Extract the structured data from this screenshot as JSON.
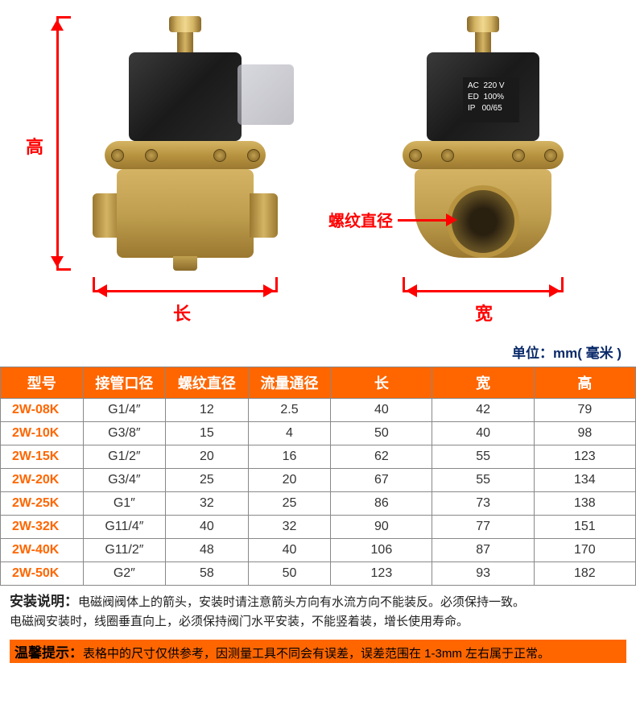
{
  "diagram": {
    "height_label": "高",
    "length_label": "长",
    "width_label": "宽",
    "thread_label": "螺纹直径",
    "sticker_line1": "AC  220 V",
    "sticker_line2": "ED  100%",
    "sticker_line3": "IP   00/65",
    "dimension_color": "#ff0000",
    "brass_light": "#d4b464",
    "brass_dark": "#8a6a2a",
    "coil_color": "#1a1a1a"
  },
  "unit_label": "单位：mm( 毫米 )",
  "table": {
    "header_bg": "#ff6600",
    "header_fg": "#ffffff",
    "border_color": "#888888",
    "model_color": "#ff6600",
    "columns": [
      "型号",
      "接管口径",
      "螺纹直径",
      "流量通径",
      "长",
      "宽",
      "高"
    ],
    "col_widths_pct": [
      13,
      13,
      13,
      13,
      16,
      16,
      16
    ],
    "rows": [
      [
        "2W-08K",
        "G1/4″",
        "12",
        "2.5",
        "40",
        "42",
        "79"
      ],
      [
        "2W-10K",
        "G3/8″",
        "15",
        "4",
        "50",
        "40",
        "98"
      ],
      [
        "2W-15K",
        "G1/2″",
        "20",
        "16",
        "62",
        "55",
        "123"
      ],
      [
        "2W-20K",
        "G3/4″",
        "25",
        "20",
        "67",
        "55",
        "134"
      ],
      [
        "2W-25K",
        "G1″",
        "32",
        "25",
        "86",
        "73",
        "138"
      ],
      [
        "2W-32K",
        "G11/4″",
        "40",
        "32",
        "90",
        "77",
        "151"
      ],
      [
        "2W-40K",
        "G11/2″",
        "48",
        "40",
        "106",
        "87",
        "170"
      ],
      [
        "2W-50K",
        "G2″",
        "58",
        "50",
        "123",
        "93",
        "182"
      ]
    ]
  },
  "install_note": {
    "lead": "安装说明：",
    "line1": "电磁阀阀体上的箭头，安装时请注意箭头方向有水流方向不能装反。必须保持一致。",
    "line2": "电磁阀安装时，线圈垂直向上，必须保持阀门水平安装，不能竖着装，增长使用寿命。"
  },
  "warm_tip": {
    "lead": "温馨提示：",
    "text": "表格中的尺寸仅供参考，因测量工具不同会有误差，误差范围在 1-3mm 左右属于正常。",
    "bg": "#ff6600"
  }
}
